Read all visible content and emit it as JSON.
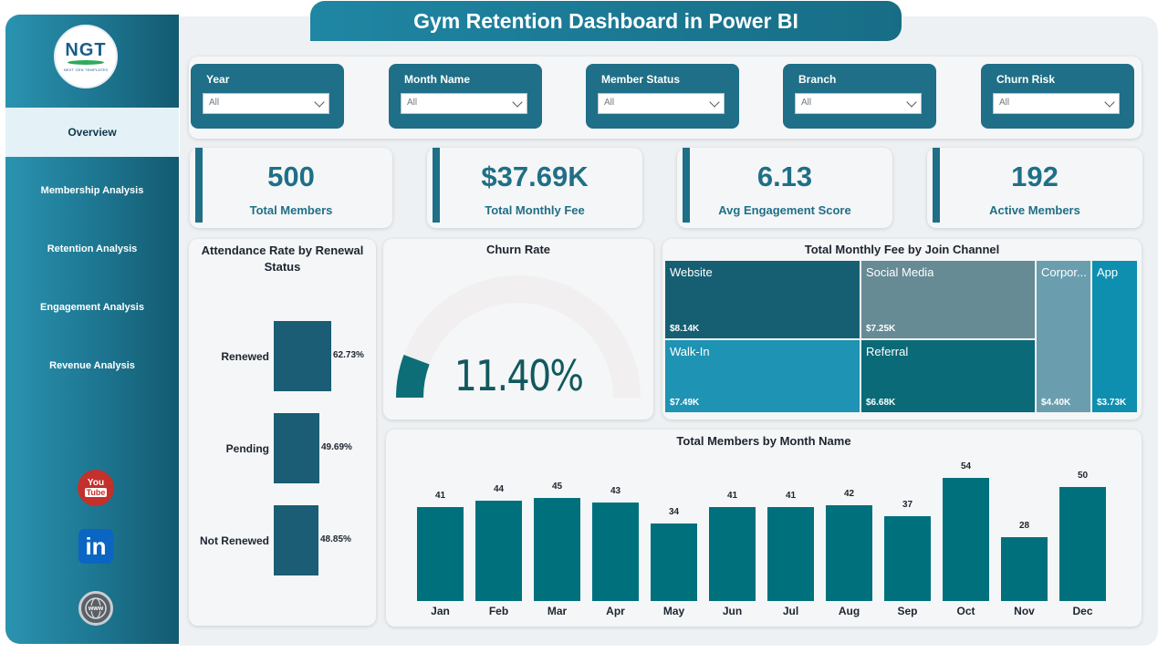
{
  "header": {
    "title": "Gym Retention Dashboard in Power BI"
  },
  "logo": {
    "mark": "NGT",
    "tagline": "NEXT GEN TEMPLATES"
  },
  "sidebar": {
    "items": [
      {
        "label": "Overview",
        "active": true
      },
      {
        "label": "Membership Analysis",
        "active": false
      },
      {
        "label": "Retention Analysis",
        "active": false
      },
      {
        "label": "Engagement Analysis",
        "active": false
      },
      {
        "label": "Revenue Analysis",
        "active": false
      }
    ],
    "social": [
      {
        "name": "youtube-icon",
        "you": "You",
        "tube": "Tube"
      },
      {
        "name": "linkedin-icon",
        "text": "in"
      },
      {
        "name": "website-icon",
        "text": "www"
      }
    ]
  },
  "slicers": [
    {
      "label": "Year",
      "value": "All"
    },
    {
      "label": "Month Name",
      "value": "All"
    },
    {
      "label": "Member Status",
      "value": "All"
    },
    {
      "label": "Branch",
      "value": "All"
    },
    {
      "label": "Churn Risk",
      "value": "All"
    }
  ],
  "kpis": [
    {
      "value": "500",
      "label": "Total Members"
    },
    {
      "value": "$37.69K",
      "label": "Total Monthly Fee"
    },
    {
      "value": "6.13",
      "label": "Avg Engagement Score"
    },
    {
      "value": "192",
      "label": "Active Members"
    }
  ],
  "colors": {
    "primary": "#1e6f87",
    "bar": "#00707d",
    "renewal_bar": "#1a5d75",
    "gauge_fill": "#0e6e78",
    "gauge_track": "#f1efef"
  },
  "attendance": {
    "title": "Attendance Rate by Renewal Status",
    "chart_data": {
      "type": "bar",
      "orientation": "horizontal",
      "categories": [
        "Renewed",
        "Pending",
        "Not Renewed"
      ],
      "values": [
        62.73,
        49.69,
        48.85
      ],
      "labels": [
        "62.73%",
        "49.69%",
        "48.85%"
      ]
    }
  },
  "churn": {
    "title": "Churn Rate",
    "value_label": "11.40%",
    "value": 11.4,
    "min": 0,
    "max": 100
  },
  "treemap": {
    "title": "Total Monthly Fee by Join Channel",
    "chart_data": {
      "type": "treemap",
      "categories": [
        "Website",
        "Social Media",
        "Walk-In",
        "Referral",
        "Corporate",
        "App"
      ],
      "display_names": [
        "Website",
        "Social Media",
        "Walk-In",
        "Referral",
        "Corpor...",
        "App"
      ],
      "values": [
        8.14,
        7.25,
        7.49,
        6.68,
        4.4,
        3.73
      ],
      "labels": [
        "$8.14K",
        "$7.25K",
        "$7.49K",
        "$6.68K",
        "$4.40K",
        "$3.73K"
      ],
      "colors": [
        "#165f73",
        "#668b95",
        "#1f93b3",
        "#0b6a77",
        "#6a9eae",
        "#0e8fb0"
      ]
    }
  },
  "monthly": {
    "title": "Total Members by Month Name",
    "chart_data": {
      "type": "bar",
      "categories": [
        "Jan",
        "Feb",
        "Mar",
        "Apr",
        "May",
        "Jun",
        "Jul",
        "Aug",
        "Sep",
        "Oct",
        "Nov",
        "Dec"
      ],
      "values": [
        41,
        44,
        45,
        43,
        34,
        41,
        41,
        42,
        37,
        54,
        28,
        50
      ]
    }
  }
}
